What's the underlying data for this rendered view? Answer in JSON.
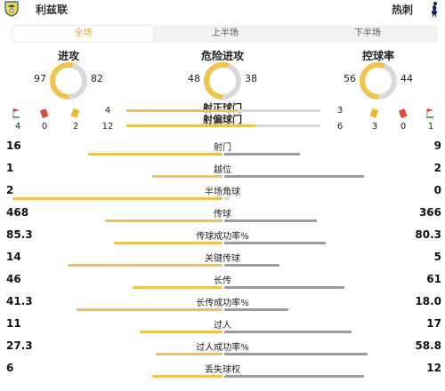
{
  "header": {
    "home_team": "利兹联",
    "away_team": "热刺"
  },
  "tabs": [
    {
      "label": "全场",
      "active": true
    },
    {
      "label": "上半场",
      "active": false
    },
    {
      "label": "下半场",
      "active": false
    }
  ],
  "rings": [
    {
      "title": "进攻",
      "home": "97",
      "away": "82",
      "home_value": 97,
      "away_value": 82
    },
    {
      "title": "危险进攻",
      "home": "48",
      "away": "38",
      "home_value": 48,
      "away_value": 38
    },
    {
      "title": "控球率",
      "home": "56",
      "away": "44",
      "home_value": 56,
      "away_value": 44
    }
  ],
  "cards": {
    "home": {
      "corners": "4",
      "red": "0",
      "yellow": "2",
      "off_target": "12"
    },
    "away": {
      "yellow": "3",
      "red": "0",
      "corners": "1",
      "on_target_extra": "6"
    }
  },
  "shots_on_target": {
    "label": "射正球门",
    "home": "4",
    "away": "3",
    "home_value": 4,
    "away_value": 3
  },
  "shots_off_target": {
    "label": "射偏球门",
    "home": "12",
    "away": "6",
    "home_value": 12,
    "away_value": 6
  },
  "home_counts": {
    "red": "0",
    "yellow": "2"
  },
  "away_counts": {
    "yellow": "3",
    "red": "0",
    "corners": "1"
  },
  "stats": [
    {
      "label": "射门",
      "home": "16",
      "away": "9",
      "home_value": 16,
      "away_value": 9
    },
    {
      "label": "越位",
      "home": "1",
      "away": "2",
      "home_value": 1,
      "away_value": 2
    },
    {
      "label": "半场角球",
      "home": "2",
      "away": "0",
      "home_value": 2,
      "away_value": 0
    },
    {
      "label": "传球",
      "home": "468",
      "away": "366",
      "home_value": 468,
      "away_value": 366
    },
    {
      "label": "传球成功率%",
      "home": "85.3",
      "away": "80.3",
      "home_value": 85.3,
      "away_value": 80.3
    },
    {
      "label": "关键传球",
      "home": "14",
      "away": "5",
      "home_value": 14,
      "away_value": 5
    },
    {
      "label": "长传",
      "home": "46",
      "away": "61",
      "home_value": 46,
      "away_value": 61
    },
    {
      "label": "长传成功率%",
      "home": "41.3",
      "away": "18.0",
      "home_value": 41.3,
      "away_value": 18.0
    },
    {
      "label": "过人",
      "home": "11",
      "away": "17",
      "home_value": 11,
      "away_value": 17
    },
    {
      "label": "过人成功率%",
      "home": "27.3",
      "away": "58.8",
      "home_value": 27.3,
      "away_value": 58.8
    },
    {
      "label": "丢失球权",
      "home": "6",
      "away": "12",
      "home_value": 6,
      "away_value": 12
    }
  ],
  "colors": {
    "home": "#f0c44c",
    "away": "#9b9b9b",
    "accent": "#e8a427",
    "track": "#d9d9d9"
  }
}
